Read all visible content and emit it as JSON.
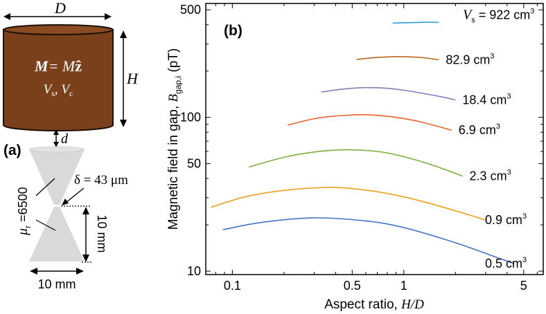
{
  "figure": {
    "panel_a": {
      "label": "(a)",
      "magnet_width_symbol": "D",
      "magnet_height_symbol": "H",
      "magnetization_bold": "M",
      "magnetization_eq": "= M",
      "magnetization_unit_vec": "ẑ",
      "volumes_text": "V",
      "volumes_sub1": "s",
      "volumes_sep": ", V",
      "volumes_sub2": "c",
      "gap_symbol": "d",
      "permeability_text": "μ",
      "permeability_sub": "r",
      "permeability_value": " =6500",
      "delta_label": "δ = 43 μm",
      "cone_height_label": "10 mm",
      "cone_width_label": "10 mm",
      "colors": {
        "magnet_fill": "#7a3f1b",
        "magnet_stroke": "#1a0e05",
        "cone_fill": "#d9d9d9"
      }
    },
    "panel_b": {
      "label": "(b)"
    }
  },
  "chart_data": {
    "type": "line",
    "title": "",
    "xlabel": "Aspect ratio, H/D",
    "ylabel": "Magnetic field in gap, B_gap,i (pT)",
    "x_scale": "log",
    "y_scale": "log",
    "xlim": [
      0.07,
      6.5
    ],
    "ylim": [
      9.5,
      550
    ],
    "x_ticks": [
      0.1,
      0.5,
      1,
      5
    ],
    "x_tick_labels": [
      "0.1",
      "0.5",
      "1",
      "5"
    ],
    "y_ticks": [
      10,
      50,
      100,
      500
    ],
    "y_tick_labels": [
      "10",
      "50",
      "100",
      "500"
    ],
    "grid": false,
    "legend": "inline labels right of curves",
    "series": [
      {
        "name": "0.5 cm3",
        "label_main": "0.5 cm",
        "label_sup": "3",
        "color": "#4472c4",
        "x": [
          0.088,
          0.15,
          0.3,
          0.6,
          1.0,
          2.0,
          3.4,
          4.4
        ],
        "y": [
          18.6,
          20.8,
          22.2,
          21.2,
          19.2,
          15.3,
          12.4,
          11.2
        ]
      },
      {
        "name": "0.9 cm3",
        "label_main": "0.9 cm",
        "label_sup": "3",
        "color": "#e8a01e",
        "x": [
          0.075,
          0.12,
          0.2,
          0.35,
          0.5,
          0.8,
          1.3,
          2.2,
          3.0
        ],
        "y": [
          26.0,
          30.5,
          33.5,
          35.0,
          34.4,
          32.0,
          28.3,
          23.9,
          21.5
        ]
      },
      {
        "name": "2.3 cm3",
        "label_main": "2.3 cm",
        "label_sup": "3",
        "color": "#7cad3a",
        "x": [
          0.125,
          0.2,
          0.3,
          0.45,
          0.7,
          1.0,
          1.5,
          2.2
        ],
        "y": [
          47.5,
          55.0,
          59.5,
          61.5,
          60.0,
          55.5,
          48.5,
          41.5
        ]
      },
      {
        "name": "6.9 cm3",
        "label_main": "6.9 cm",
        "label_sup": "3",
        "color": "#e8602a",
        "x": [
          0.21,
          0.3,
          0.4,
          0.55,
          0.7,
          0.9,
          1.2,
          1.6,
          1.9
        ],
        "y": [
          89.0,
          98.0,
          102.0,
          104.0,
          103.0,
          100.0,
          94.5,
          87.0,
          82.5
        ]
      },
      {
        "name": "18.4 cm3",
        "label_main": "18.4 cm",
        "label_sup": "3",
        "color": "#8a78b8",
        "x": [
          0.33,
          0.45,
          0.6,
          0.8,
          1.0,
          1.3,
          1.6,
          2.0
        ],
        "y": [
          146.0,
          153.0,
          156.0,
          154.5,
          150.0,
          143.0,
          137.0,
          130.0
        ]
      },
      {
        "name": "82.9 cm3",
        "label_main": "82.9 cm",
        "label_sup": "3",
        "color": "#b8651a",
        "x": [
          0.53,
          0.7,
          0.9,
          1.1,
          1.3,
          1.6
        ],
        "y": [
          238.0,
          245.0,
          248.0,
          247.0,
          244.0,
          237.0
        ]
      },
      {
        "name": "922 cm3",
        "label_pre": "V",
        "label_pre_sub": "s",
        "label_main": " = 922 cm",
        "label_sup": "3",
        "color": "#2e9ed8",
        "x": [
          0.86,
          1.0,
          1.2,
          1.4,
          1.6
        ],
        "y": [
          410.0,
          412.0,
          414.0,
          415.0,
          414.0
        ]
      }
    ]
  }
}
